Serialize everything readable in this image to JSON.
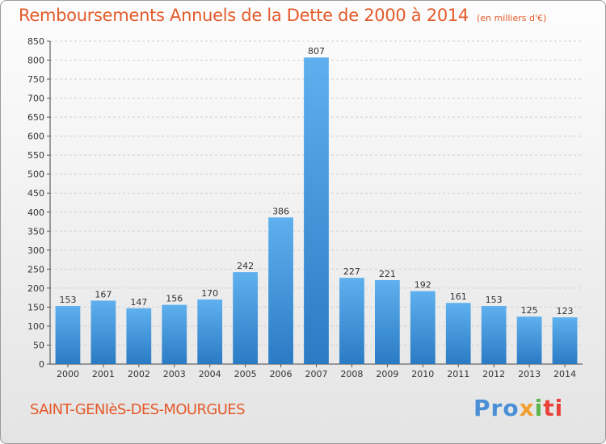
{
  "chart_data": {
    "type": "bar",
    "title": "Remboursements Annuels de la Dette de 2000 à 2014",
    "subtitle": "(en milliers d'€)",
    "categories": [
      "2000",
      "2001",
      "2002",
      "2003",
      "2004",
      "2005",
      "2006",
      "2007",
      "2008",
      "2009",
      "2010",
      "2011",
      "2012",
      "2013",
      "2014"
    ],
    "values": [
      153,
      167,
      147,
      156,
      170,
      242,
      386,
      807,
      227,
      221,
      192,
      161,
      153,
      125,
      123
    ],
    "ylim": [
      0,
      850
    ],
    "yticks": [
      0,
      50,
      100,
      150,
      200,
      250,
      300,
      350,
      400,
      450,
      500,
      550,
      600,
      650,
      700,
      750,
      800,
      850
    ],
    "grid": true,
    "bar_color": "#3a8fd9"
  },
  "footer": {
    "commune": "SAINT-GENIèS-DES-MOURGUES"
  },
  "logo": {
    "text": "Proxiti",
    "parts": [
      "Pro",
      "x",
      "i",
      "ti"
    ]
  }
}
